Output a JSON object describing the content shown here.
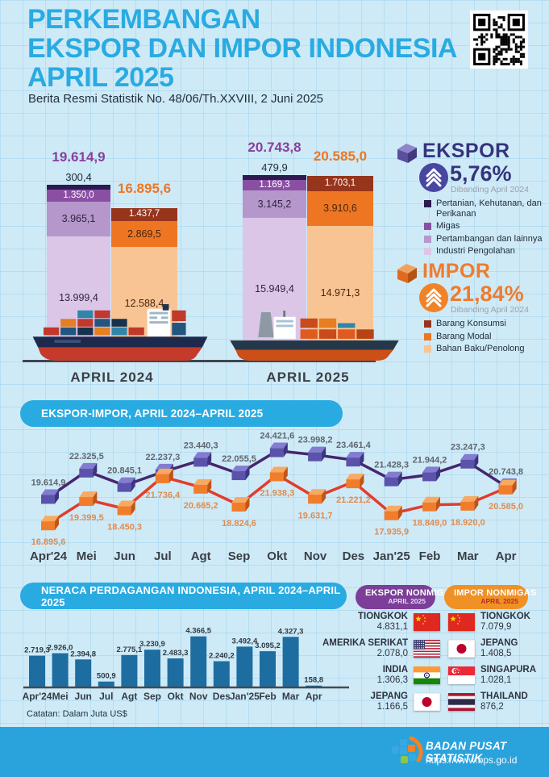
{
  "header": {
    "title_lines": [
      "PERKEMBANGAN",
      "EKSPOR DAN IMPOR INDONESIA",
      "APRIL 2025"
    ],
    "subtitle": "Berita Resmi Statistik No. 48/06/Th.XXVIII, 2 Juni 2025"
  },
  "summary_panel": {
    "ekspor": {
      "title": "EKSPOR",
      "pct": "5,76%",
      "compare": "Dibanding April 2024",
      "accent": "#34347c",
      "legend": [
        {
          "label": "Pertanian, Kehutanan, dan Perikanan",
          "color": "#2b1b4f"
        },
        {
          "label": "Migas",
          "color": "#8a4fa3"
        },
        {
          "label": "Pertambangan dan lainnya",
          "color": "#b597cb"
        },
        {
          "label": "Industri Pengolahan",
          "color": "#dcc6e8"
        }
      ]
    },
    "impor": {
      "title": "IMPOR",
      "pct": "21,84%",
      "compare": "Dibanding April 2024",
      "accent": "#ef7b2d",
      "legend": [
        {
          "label": "Barang Konsumsi",
          "color": "#96351c"
        },
        {
          "label": "Barang Modal",
          "color": "#ee7623"
        },
        {
          "label": "Bahan Baku/Penolong",
          "color": "#f9c493"
        }
      ]
    }
  },
  "chart_data": [
    {
      "type": "bar",
      "name": "ekspor-impor-stacked",
      "groups": [
        {
          "label": "APRIL 2024",
          "ekspor": {
            "total": 19614.9,
            "total_label": "19.614,9",
            "segments": [
              {
                "name": "Pertanian, Kehutanan, dan Perikanan",
                "value": 300.4,
                "label": "300,4"
              },
              {
                "name": "Migas",
                "value": 1350.0,
                "label": "1.350,0"
              },
              {
                "name": "Pertambangan dan lainnya",
                "value": 3965.1,
                "label": "3.965,1"
              },
              {
                "name": "Industri Pengolahan",
                "value": 13999.4,
                "label": "13.999,4"
              }
            ]
          },
          "impor": {
            "total": 16895.6,
            "total_label": "16.895,6",
            "segments": [
              {
                "name": "Barang Konsumsi",
                "value": 1437.7,
                "label": "1.437,7"
              },
              {
                "name": "Barang Modal",
                "value": 2869.5,
                "label": "2.869,5"
              },
              {
                "name": "Bahan Baku/Penolong",
                "value": 12588.4,
                "label": "12.588,4"
              }
            ]
          }
        },
        {
          "label": "APRIL 2025",
          "ekspor": {
            "total": 20743.8,
            "total_label": "20.743,8",
            "segments": [
              {
                "name": "Pertanian, Kehutanan, dan Perikanan",
                "value": 479.9,
                "label": "479,9"
              },
              {
                "name": "Migas",
                "value": 1169.3,
                "label": "1.169,3"
              },
              {
                "name": "Pertambangan dan lainnya",
                "value": 3145.2,
                "label": "3.145,2"
              },
              {
                "name": "Industri Pengolahan",
                "value": 15949.4,
                "label": "15.949,4"
              }
            ]
          },
          "impor": {
            "total": 20585.0,
            "total_label": "20.585,0",
            "segments": [
              {
                "name": "Barang Konsumsi",
                "value": 1703.1,
                "label": "1.703,1"
              },
              {
                "name": "Barang Modal",
                "value": 3910.6,
                "label": "3.910,6"
              },
              {
                "name": "Bahan Baku/Penolong",
                "value": 14971.3,
                "label": "14.971,3"
              }
            ]
          }
        }
      ]
    },
    {
      "type": "line",
      "title": "EKSPOR-IMPOR, APRIL 2024–APRIL 2025",
      "categories": [
        "Apr'24",
        "Mei",
        "Jun",
        "Jul",
        "Agt",
        "Sep",
        "Okt",
        "Nov",
        "Des",
        "Jan'25",
        "Feb",
        "Mar",
        "Apr"
      ],
      "series": [
        {
          "name": "Ekspor",
          "color": "#46266e",
          "values": [
            19614.9,
            22325.5,
            20845.1,
            22237.3,
            23440.3,
            22055.5,
            24421.6,
            23998.2,
            23461.4,
            21428.3,
            21944.2,
            23247.3,
            20743.8
          ],
          "labels": [
            "19.614,9",
            "22.325,5",
            "20.845,1",
            "22.237,3",
            "23.440,3",
            "22.055,5",
            "24.421,6",
            "23.998,2",
            "23.461,4",
            "21.428,3",
            "21.944,2",
            "23.247,3",
            "20.743,8"
          ]
        },
        {
          "name": "Impor",
          "color": "#e23c2c",
          "values": [
            16895.6,
            19399.5,
            18450.3,
            21736.4,
            20665.2,
            18824.6,
            21938.3,
            19631.7,
            21221.2,
            17935.9,
            18849.0,
            18920.0,
            20585.0
          ],
          "labels": [
            "16.895,6",
            "19.399,5",
            "18.450,3",
            "21.736,4",
            "20.665,2",
            "18.824,6",
            "21.938,3",
            "19.631,7",
            "21.221,2",
            "17.935,9",
            "18.849,0",
            "18.920,0",
            "20.585,0"
          ]
        }
      ]
    },
    {
      "type": "bar",
      "title": "NERACA PERDAGANGAN INDONESIA, APRIL 2024–APRIL 2025",
      "categories": [
        "Apr'24",
        "Mei",
        "Jun",
        "Jul",
        "Agt",
        "Sep",
        "Okt",
        "Nov",
        "Des",
        "Jan'25",
        "Feb",
        "Mar",
        "Apr"
      ],
      "values": [
        2719.3,
        2926.0,
        2394.8,
        500.9,
        2775.1,
        3230.9,
        2483.3,
        4366.5,
        2240.2,
        3492.4,
        3095.2,
        4327.3,
        158.8
      ],
      "labels": [
        "2.719,3",
        "2.926,0",
        "2.394,8",
        "500,9",
        "2.775,1",
        "3.230,9",
        "2.483,3",
        "4.366,5",
        "2.240,2",
        "3.492,4",
        "3.095,2",
        "4.327,3",
        "158,8"
      ],
      "note": "Catatan: Dalam Juta US$",
      "bar_color": "#1d6da1"
    }
  ],
  "nonmigas": {
    "ekspor": {
      "title": "EKSPOR NONMIGAS",
      "period": "APRIL 2025",
      "color": "#7c3e98",
      "period_color": "#e7d9f2",
      "rows": [
        {
          "country": "TIONGKOK",
          "value": "4.831,1",
          "flag": "china"
        },
        {
          "country": "AMERIKA SERIKAT",
          "value": "2.078,0",
          "flag": "usa"
        },
        {
          "country": "INDIA",
          "value": "1.306,3",
          "flag": "india"
        },
        {
          "country": "JEPANG",
          "value": "1.166,5",
          "flag": "japan"
        }
      ]
    },
    "impor": {
      "title": "IMPOR NONMIGAS",
      "period": "APRIL 2025",
      "color": "#f09126",
      "period_color": "#b82e20",
      "rows": [
        {
          "country": "TIONGKOK",
          "value": "7.079,9",
          "flag": "china"
        },
        {
          "country": "JEPANG",
          "value": "1.408,5",
          "flag": "japan"
        },
        {
          "country": "SINGAPURA",
          "value": "1.028,1",
          "flag": "singapore"
        },
        {
          "country": "THAILAND",
          "value": "876,2",
          "flag": "thailand"
        }
      ]
    }
  },
  "footer": {
    "org": "BADAN PUSAT STATISTIK",
    "url": "https://www.bps.go.id"
  }
}
